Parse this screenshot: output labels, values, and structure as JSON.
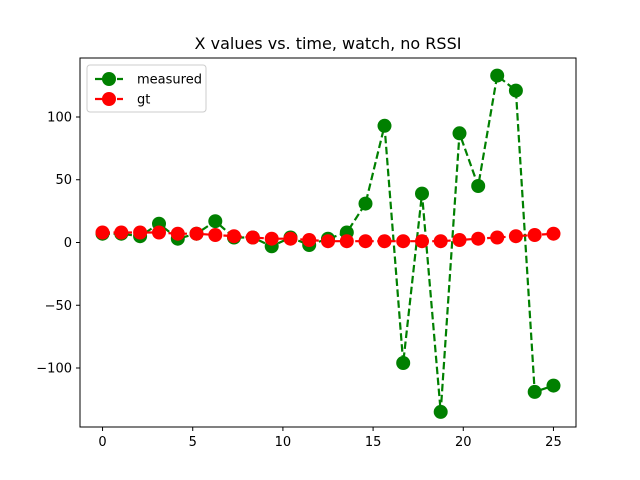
{
  "chart_data": {
    "type": "line",
    "title": "X values vs. time, watch, no RSSI",
    "xlabel": "",
    "ylabel": "",
    "xlim": [
      -1.25,
      26.25
    ],
    "ylim": [
      -147,
      147
    ],
    "x_ticks": [
      0,
      5,
      10,
      15,
      20,
      25
    ],
    "y_ticks": [
      -100,
      -50,
      0,
      50,
      100
    ],
    "y_tick_labels": [
      "−100",
      "−50",
      "0",
      "50",
      "100"
    ],
    "grid": false,
    "legend_position": "top-left",
    "series": [
      {
        "name": "measured",
        "color": "#008000",
        "line_style": "dashed",
        "marker": "circle",
        "x": [
          0,
          1.04,
          2.08,
          3.13,
          4.17,
          5.21,
          6.25,
          7.29,
          8.33,
          9.38,
          10.42,
          11.46,
          12.5,
          13.54,
          14.58,
          15.63,
          16.67,
          17.71,
          18.75,
          19.79,
          20.83,
          21.88,
          22.92,
          23.96,
          25.0
        ],
        "values": [
          7,
          7,
          5,
          15,
          3,
          7,
          17,
          4,
          4,
          -3,
          4,
          -2,
          3,
          8,
          31,
          93,
          -96,
          39,
          -135,
          87,
          45,
          133,
          121,
          -119,
          -114
        ]
      },
      {
        "name": "gt",
        "color": "#ff0000",
        "line_style": "dashed",
        "marker": "circle",
        "x": [
          0,
          1.04,
          2.08,
          3.13,
          4.17,
          5.21,
          6.25,
          7.29,
          8.33,
          9.38,
          10.42,
          11.46,
          12.5,
          13.54,
          14.58,
          15.63,
          16.67,
          17.71,
          18.75,
          19.79,
          20.83,
          21.88,
          22.92,
          23.96,
          25.0
        ],
        "values": [
          8,
          8,
          8,
          8,
          7,
          7,
          6,
          5,
          4,
          3,
          3,
          2,
          1,
          1,
          1,
          1,
          1,
          1,
          1,
          2,
          3,
          4,
          5,
          6,
          7
        ]
      }
    ]
  }
}
